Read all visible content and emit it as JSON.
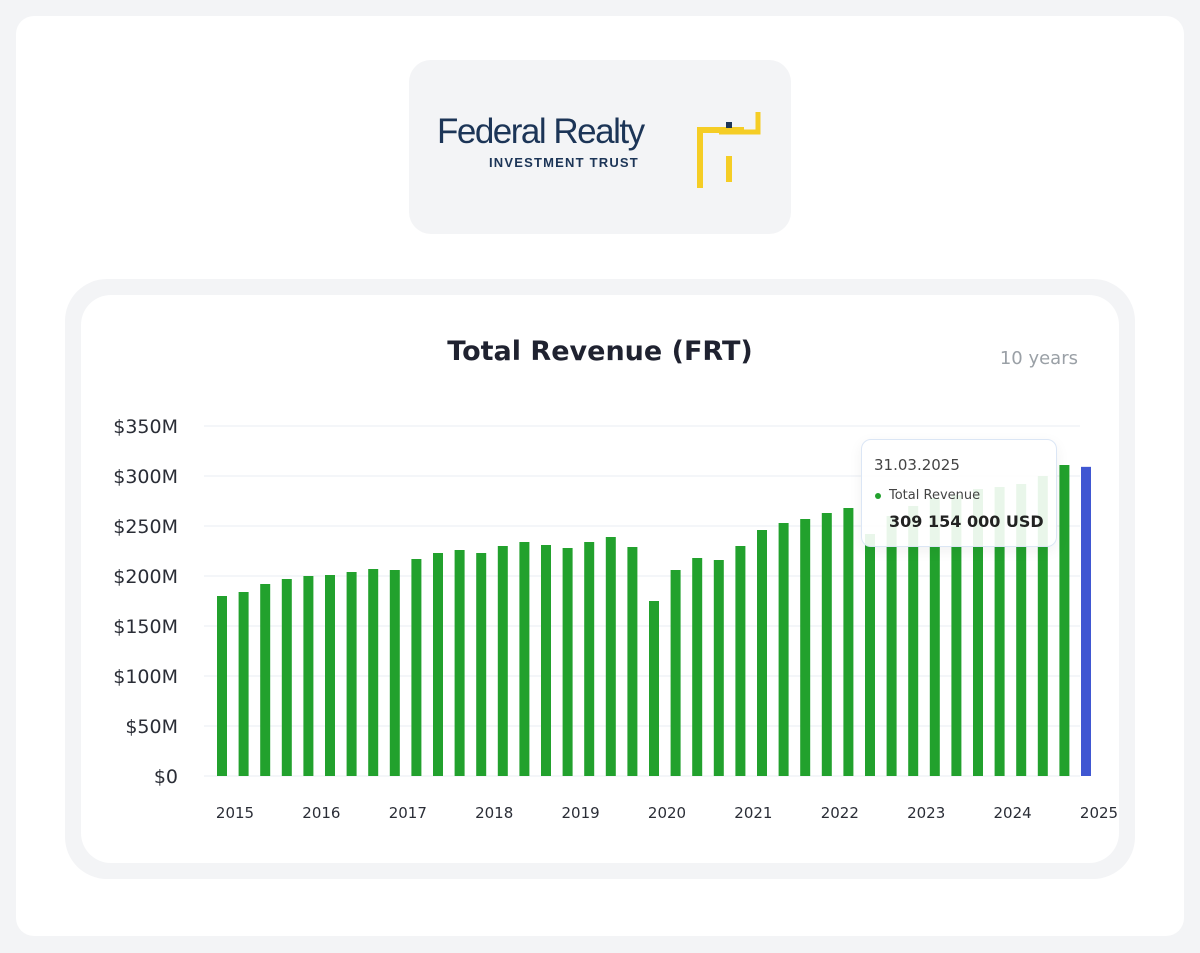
{
  "logo": {
    "name": "Federal Realty",
    "subtitle": "INVESTMENT TRUST"
  },
  "header": {
    "title": "Total Revenue (FRT)",
    "period": "10 years"
  },
  "tooltip": {
    "date": "31.03.2025",
    "series_label": "Total Revenue",
    "value": "309 154 000 USD"
  },
  "colors": {
    "bar": "#22a12d",
    "highlight": "#4057d2",
    "logo_navy": "#1c3557",
    "logo_yellow": "#f5cd25"
  },
  "chart_data": {
    "type": "bar",
    "title": "Total Revenue (FRT)",
    "ylabel": "",
    "xlabel": "",
    "ylim": [
      0,
      350
    ],
    "yticks": [
      0,
      50,
      100,
      150,
      200,
      250,
      300,
      350
    ],
    "ytick_labels": [
      "$0",
      "$50M",
      "$100M",
      "$150M",
      "$200M",
      "$250M",
      "$300M",
      "$350M"
    ],
    "year_labels": [
      "2015",
      "2016",
      "2017",
      "2018",
      "2019",
      "2020",
      "2021",
      "2022",
      "2023",
      "2024",
      "2025"
    ],
    "year_label_index": [
      0,
      4,
      8,
      12,
      16,
      20,
      24,
      28,
      32,
      36,
      40
    ],
    "unit": "USD millions",
    "highlighted_index": 40,
    "values": [
      180,
      184,
      192,
      197,
      200,
      201,
      204,
      207,
      206,
      217,
      223,
      226,
      223,
      230,
      234,
      231,
      228,
      234,
      239,
      229,
      175,
      206,
      218,
      216,
      230,
      246,
      253,
      257,
      263,
      268,
      242,
      260,
      270,
      278,
      281,
      287,
      289,
      292,
      300,
      311,
      309.154
    ]
  }
}
